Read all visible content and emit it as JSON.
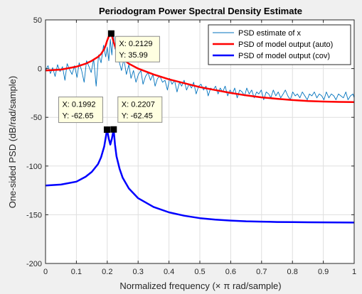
{
  "figure": {
    "background_color": "#f0f0f0",
    "axes_color": "#ffffff"
  },
  "chart_data": {
    "type": "line",
    "title": "Periodogram Power Spectral Density Estimate",
    "xlabel_prefix": "Normalized frequency (",
    "xlabel_times": "×",
    "xlabel_pi": "π",
    "xlabel_suffix": " rad/sample)",
    "ylabel": "One-sided PSD (dB/rad/sample)",
    "xlim": [
      0,
      1
    ],
    "ylim": [
      -200,
      50
    ],
    "xticks": [
      0,
      0.1,
      0.2,
      0.3,
      0.4,
      0.5,
      0.6,
      0.7,
      0.8,
      0.9,
      1
    ],
    "xtick_labels": [
      "0",
      "0.1",
      "0.2",
      "0.3",
      "0.4",
      "0.5",
      "0.6",
      "0.7",
      "0.8",
      "0.9",
      "1"
    ],
    "yticks": [
      -200,
      -150,
      -100,
      -50,
      0,
      50
    ],
    "ytick_labels": [
      "-200",
      "-150",
      "-100",
      "-50",
      "0",
      "50"
    ],
    "grid": true,
    "legend_position": "top-right",
    "series": [
      {
        "name": "PSD estimate of x",
        "color": "#0072bd",
        "linewidth": "thin",
        "x": [
          0,
          0.008,
          0.016,
          0.023,
          0.031,
          0.039,
          0.047,
          0.055,
          0.063,
          0.07,
          0.078,
          0.086,
          0.094,
          0.102,
          0.109,
          0.117,
          0.125,
          0.133,
          0.141,
          0.148,
          0.156,
          0.164,
          0.172,
          0.18,
          0.188,
          0.195,
          0.2,
          0.205,
          0.21,
          0.215,
          0.22,
          0.225,
          0.23,
          0.238,
          0.246,
          0.254,
          0.262,
          0.27,
          0.277,
          0.285,
          0.293,
          0.301,
          0.309,
          0.316,
          0.324,
          0.332,
          0.34,
          0.348,
          0.355,
          0.363,
          0.371,
          0.379,
          0.387,
          0.395,
          0.402,
          0.41,
          0.418,
          0.426,
          0.434,
          0.441,
          0.449,
          0.457,
          0.465,
          0.473,
          0.48,
          0.488,
          0.496,
          0.504,
          0.512,
          0.52,
          0.527,
          0.535,
          0.543,
          0.551,
          0.559,
          0.566,
          0.574,
          0.582,
          0.59,
          0.598,
          0.605,
          0.613,
          0.621,
          0.629,
          0.637,
          0.645,
          0.652,
          0.66,
          0.668,
          0.676,
          0.684,
          0.691,
          0.699,
          0.707,
          0.715,
          0.723,
          0.73,
          0.738,
          0.746,
          0.754,
          0.762,
          0.77,
          0.777,
          0.785,
          0.793,
          0.801,
          0.809,
          0.816,
          0.824,
          0.832,
          0.84,
          0.848,
          0.855,
          0.863,
          0.871,
          0.879,
          0.887,
          0.895,
          0.902,
          0.91,
          0.918,
          0.926,
          0.934,
          0.941,
          0.949,
          0.957,
          0.965,
          0.973,
          0.98,
          0.988,
          0.996,
          1
        ],
        "y": [
          -2,
          3,
          -5,
          1,
          -8,
          4,
          -3,
          2,
          -12,
          5,
          -1,
          -6,
          3,
          -9,
          6,
          -2,
          -14,
          8,
          2,
          -4,
          10,
          -18,
          14,
          6,
          24,
          12,
          22,
          8,
          30,
          14,
          37,
          20,
          26,
          8,
          -2,
          10,
          -6,
          4,
          -10,
          -2,
          -14,
          -6,
          -2,
          -16,
          -8,
          -4,
          -12,
          -6,
          -18,
          -10,
          -8,
          -14,
          -12,
          -22,
          -10,
          -16,
          -12,
          -24,
          -14,
          -18,
          -12,
          -22,
          -16,
          -20,
          -14,
          -26,
          -18,
          -16,
          -22,
          -18,
          -28,
          -20,
          -22,
          -18,
          -26,
          -20,
          -24,
          -18,
          -28,
          -22,
          -26,
          -20,
          -30,
          -22,
          -24,
          -28,
          -20,
          -26,
          -22,
          -30,
          -24,
          -26,
          -22,
          -32,
          -24,
          -26,
          -30,
          -22,
          -28,
          -24,
          -30,
          -26,
          -22,
          -28,
          -32,
          -24,
          -28,
          -26,
          -30,
          -24,
          -28,
          -32,
          -26,
          -28,
          -24,
          -30,
          -26,
          -28,
          -32,
          -24,
          -30,
          -26,
          -28,
          -32,
          -26,
          -28,
          -30,
          -24,
          -32,
          -28,
          -26,
          -30
        ]
      },
      {
        "name": "PSD of model output (auto)",
        "color": "#ff0000",
        "linewidth": "thick",
        "x": [
          0,
          0.05,
          0.1,
          0.13,
          0.15,
          0.17,
          0.18,
          0.19,
          0.195,
          0.2,
          0.205,
          0.21,
          0.2129,
          0.215,
          0.22,
          0.225,
          0.23,
          0.24,
          0.25,
          0.27,
          0.3,
          0.35,
          0.4,
          0.45,
          0.5,
          0.55,
          0.6,
          0.65,
          0.7,
          0.75,
          0.8,
          0.85,
          0.9,
          0.95,
          1
        ],
        "y": [
          -2,
          -1,
          2,
          5,
          8,
          12,
          15,
          20,
          24,
          29,
          33,
          35.5,
          35.99,
          34,
          28,
          23,
          19,
          14,
          10,
          5,
          0,
          -6,
          -11,
          -15,
          -19,
          -22,
          -25,
          -27.5,
          -29.5,
          -31,
          -32.3,
          -33.2,
          -33.8,
          -34.2,
          -34.4
        ]
      },
      {
        "name": "PSD of model output (cov)",
        "color": "#0000ff",
        "linewidth": "thick",
        "x": [
          0,
          0.05,
          0.1,
          0.13,
          0.15,
          0.17,
          0.18,
          0.19,
          0.1992,
          0.205,
          0.21,
          0.215,
          0.2207,
          0.225,
          0.23,
          0.24,
          0.25,
          0.27,
          0.3,
          0.35,
          0.4,
          0.45,
          0.5,
          0.55,
          0.6,
          0.65,
          0.7,
          0.75,
          0.8,
          0.85,
          0.9,
          0.95,
          1
        ],
        "y": [
          -120,
          -119,
          -116,
          -111,
          -106,
          -98,
          -91,
          -80,
          -62.65,
          -72,
          -78,
          -72,
          -62.45,
          -78,
          -90,
          -103,
          -112,
          -123,
          -133,
          -142,
          -147.5,
          -151,
          -153.5,
          -155,
          -156,
          -156.7,
          -157.1,
          -157.4,
          -157.6,
          -157.7,
          -157.8,
          -157.9,
          -158
        ]
      }
    ],
    "datatips": [
      {
        "x": 0.2129,
        "y": 35.99,
        "label_x": "X: 0.2129",
        "label_y": "Y: 35.99",
        "anchor": "right-below"
      },
      {
        "x": 0.1992,
        "y": -62.65,
        "label_x": "X: 0.1992",
        "label_y": "Y: -62.65",
        "anchor": "left-above"
      },
      {
        "x": 0.2207,
        "y": -62.45,
        "label_x": "X: 0.2207",
        "label_y": "Y: -62.45",
        "anchor": "right-above"
      }
    ]
  }
}
